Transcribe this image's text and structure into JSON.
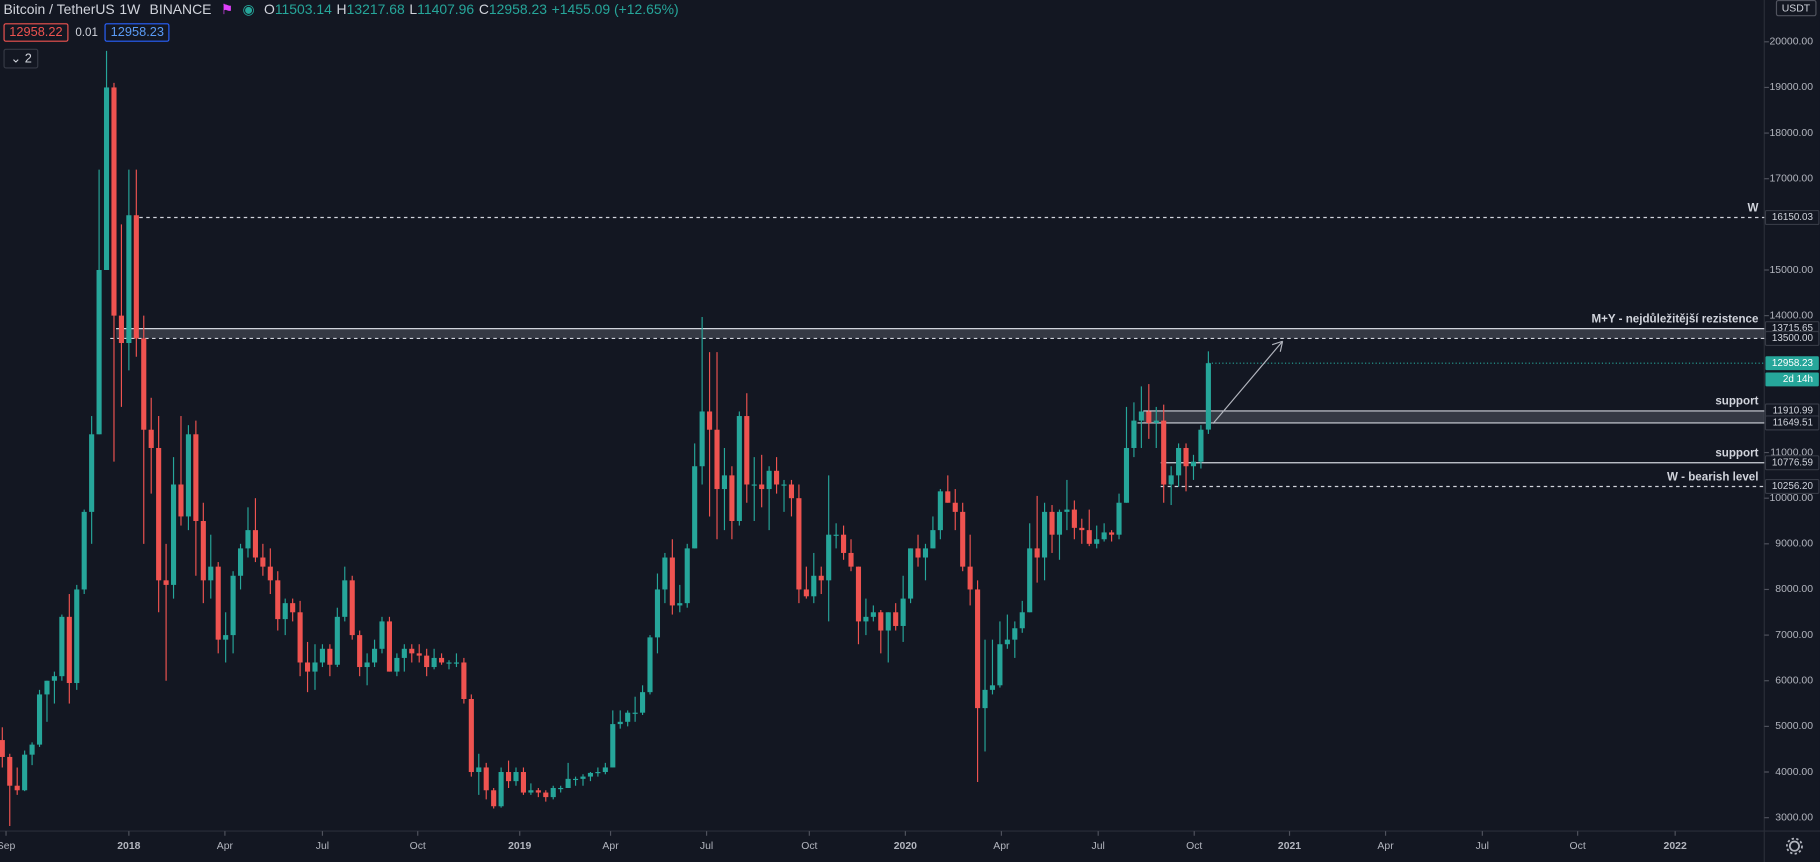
{
  "header": {
    "symbol": "Bitcoin / TetherUS",
    "interval": "1W",
    "exchange": "BINANCE",
    "open_label": "O",
    "high_label": "H",
    "low_label": "L",
    "close_label": "C",
    "change": "+1455.09 (+12.65%)",
    "bid": "12958.22",
    "spread": "0.01",
    "indicators": "2",
    "currency": "USDT",
    "countdown": "2d 14h"
  },
  "chart_data": {
    "type": "candlestick",
    "up_color": "#26a69a",
    "down_color": "#ef5350",
    "grid": false,
    "candles": [
      [
        4700,
        4980,
        4100,
        4330
      ],
      [
        4330,
        4400,
        2817,
        3700
      ],
      [
        3700,
        4100,
        3500,
        3600
      ],
      [
        3600,
        4470,
        3580,
        4380
      ],
      [
        4380,
        4650,
        4150,
        4600
      ],
      [
        4600,
        5800,
        4550,
        5700
      ],
      [
        5700,
        6000,
        5100,
        6000
      ],
      [
        6000,
        6200,
        5500,
        6100
      ],
      [
        6100,
        7450,
        6000,
        7400
      ],
      [
        7400,
        7900,
        5500,
        5950
      ],
      [
        5950,
        8100,
        5800,
        8000
      ],
      [
        8000,
        9750,
        7900,
        9700
      ],
      [
        9700,
        11800,
        9000,
        11400
      ],
      [
        11400,
        17200,
        11400,
        15000
      ],
      [
        15000,
        19800,
        15000,
        19000
      ],
      [
        19000,
        19100,
        10800,
        14000
      ],
      [
        14000,
        16000,
        12000,
        13400
      ],
      [
        13400,
        17200,
        12800,
        16200
      ],
      [
        16200,
        17200,
        13100,
        13500
      ],
      [
        13500,
        14000,
        9000,
        11500
      ],
      [
        11500,
        12200,
        10100,
        11100
      ],
      [
        11100,
        11800,
        7500,
        8200
      ],
      [
        8200,
        9000,
        6000,
        8100
      ],
      [
        8100,
        10900,
        7800,
        10300
      ],
      [
        10300,
        11800,
        9400,
        9600
      ],
      [
        9600,
        11600,
        9300,
        11400
      ],
      [
        11400,
        11700,
        8300,
        9500
      ],
      [
        9500,
        9900,
        7700,
        8200
      ],
      [
        8200,
        9200,
        7800,
        8500
      ],
      [
        8500,
        8600,
        6600,
        6900
      ],
      [
        6900,
        7500,
        6400,
        7000
      ],
      [
        7000,
        8400,
        6600,
        8300
      ],
      [
        8300,
        9000,
        8000,
        8900
      ],
      [
        8900,
        9800,
        8700,
        9300
      ],
      [
        9300,
        10000,
        8600,
        8700
      ],
      [
        8700,
        9000,
        8300,
        8500
      ],
      [
        8500,
        8900,
        7900,
        8200
      ],
      [
        8200,
        8400,
        7100,
        7350
      ],
      [
        7350,
        7800,
        7000,
        7700
      ],
      [
        7700,
        7800,
        7300,
        7500
      ],
      [
        7500,
        7750,
        6100,
        6400
      ],
      [
        6400,
        6850,
        5750,
        6200
      ],
      [
        6200,
        6800,
        5800,
        6400
      ],
      [
        6400,
        6800,
        6300,
        6700
      ],
      [
        6700,
        6800,
        6100,
        6350
      ],
      [
        6350,
        7600,
        6300,
        7400
      ],
      [
        7400,
        8500,
        7300,
        8200
      ],
      [
        8200,
        8300,
        6900,
        7000
      ],
      [
        7000,
        7100,
        6100,
        6300
      ],
      [
        6300,
        6600,
        5900,
        6400
      ],
      [
        6400,
        6900,
        6300,
        6700
      ],
      [
        6700,
        7400,
        6600,
        7300
      ],
      [
        7300,
        7400,
        6200,
        6200
      ],
      [
        6200,
        6600,
        6100,
        6500
      ],
      [
        6500,
        6800,
        6200,
        6700
      ],
      [
        6700,
        6800,
        6400,
        6600
      ],
      [
        6600,
        6800,
        6400,
        6550
      ],
      [
        6550,
        6700,
        6100,
        6300
      ],
      [
        6300,
        6700,
        6250,
        6500
      ],
      [
        6500,
        6600,
        6350,
        6400
      ],
      [
        6400,
        6450,
        6250,
        6400
      ],
      [
        6400,
        6600,
        6300,
        6400
      ],
      [
        6400,
        6500,
        5500,
        5600
      ],
      [
        5600,
        5700,
        3900,
        4000
      ],
      [
        4000,
        4400,
        3500,
        4100
      ],
      [
        4100,
        4200,
        3400,
        3600
      ],
      [
        3600,
        3650,
        3200,
        3250
      ],
      [
        3250,
        4100,
        3220,
        4000
      ],
      [
        4000,
        4250,
        3650,
        3800
      ],
      [
        3800,
        4100,
        3700,
        4000
      ],
      [
        4000,
        4100,
        3500,
        3550
      ],
      [
        3550,
        3750,
        3500,
        3600
      ],
      [
        3600,
        3650,
        3450,
        3550
      ],
      [
        3550,
        3600,
        3350,
        3450
      ],
      [
        3450,
        3700,
        3400,
        3650
      ],
      [
        3650,
        3700,
        3550,
        3650
      ],
      [
        3650,
        4200,
        3650,
        3850
      ],
      [
        3850,
        3900,
        3700,
        3850
      ],
      [
        3850,
        3950,
        3700,
        3900
      ],
      [
        3900,
        4000,
        3800,
        3980
      ],
      [
        3980,
        4100,
        3900,
        4000
      ],
      [
        4000,
        4200,
        3950,
        4100
      ],
      [
        4100,
        5350,
        4100,
        5050
      ],
      [
        5050,
        5350,
        4950,
        5100
      ],
      [
        5100,
        5350,
        5000,
        5300
      ],
      [
        5300,
        5650,
        5100,
        5300
      ],
      [
        5300,
        5900,
        5250,
        5750
      ],
      [
        5750,
        7000,
        5700,
        6950
      ],
      [
        6950,
        8350,
        6600,
        8000
      ],
      [
        8000,
        8800,
        7700,
        8700
      ],
      [
        8700,
        9100,
        7450,
        7650
      ],
      [
        7650,
        8100,
        7500,
        7700
      ],
      [
        7700,
        9000,
        7600,
        8900
      ],
      [
        8900,
        11200,
        8900,
        10700
      ],
      [
        10700,
        13970,
        10300,
        11900
      ],
      [
        11900,
        13200,
        9600,
        11500
      ],
      [
        11500,
        13200,
        9100,
        10200
      ],
      [
        10200,
        11100,
        9300,
        10500
      ],
      [
        10500,
        10700,
        9100,
        9500
      ],
      [
        9500,
        11900,
        9400,
        11800
      ],
      [
        11800,
        12300,
        9900,
        10300
      ],
      [
        10300,
        10900,
        9500,
        10300
      ],
      [
        10300,
        10950,
        9800,
        10200
      ],
      [
        10200,
        10700,
        9300,
        10600
      ],
      [
        10600,
        10900,
        10100,
        10300
      ],
      [
        10300,
        10400,
        9700,
        10300
      ],
      [
        10300,
        10400,
        9600,
        10000
      ],
      [
        10000,
        10300,
        7700,
        8000
      ],
      [
        8000,
        8500,
        7800,
        7850
      ],
      [
        7850,
        8800,
        7700,
        8300
      ],
      [
        8300,
        8500,
        7900,
        8200
      ],
      [
        8200,
        10500,
        7300,
        9200
      ],
      [
        9200,
        9450,
        8900,
        9200
      ],
      [
        9200,
        9400,
        8650,
        8800
      ],
      [
        8800,
        9100,
        8400,
        8500
      ],
      [
        8500,
        8500,
        6800,
        7300
      ],
      [
        7300,
        7800,
        7000,
        7400
      ],
      [
        7400,
        7650,
        7300,
        7500
      ],
      [
        7500,
        7550,
        6600,
        7100
      ],
      [
        7100,
        7500,
        6400,
        7500
      ],
      [
        7500,
        7700,
        7100,
        7200
      ],
      [
        7200,
        8300,
        6850,
        7800
      ],
      [
        7800,
        8900,
        7700,
        8900
      ],
      [
        8900,
        9200,
        8500,
        8700
      ],
      [
        8700,
        9000,
        8200,
        8900
      ],
      [
        8900,
        9600,
        8900,
        9300
      ],
      [
        9300,
        10200,
        9100,
        10150
      ],
      [
        10150,
        10500,
        9900,
        9900
      ],
      [
        9900,
        10200,
        9300,
        9700
      ],
      [
        9700,
        9900,
        8400,
        8500
      ],
      [
        8500,
        9200,
        7650,
        8000
      ],
      [
        8000,
        8200,
        3780,
        5400
      ],
      [
        5400,
        6900,
        4450,
        5800
      ],
      [
        5800,
        6900,
        5700,
        5900
      ],
      [
        5900,
        7300,
        5850,
        6800
      ],
      [
        6800,
        7450,
        6700,
        6900
      ],
      [
        6900,
        7300,
        6500,
        7150
      ],
      [
        7150,
        7750,
        7050,
        7500
      ],
      [
        7500,
        9450,
        7500,
        8900
      ],
      [
        8900,
        10050,
        8150,
        8700
      ],
      [
        8700,
        9900,
        8200,
        9700
      ],
      [
        9700,
        9850,
        8800,
        9200
      ],
      [
        9200,
        9750,
        8650,
        9700
      ],
      [
        9700,
        10400,
        9300,
        9750
      ],
      [
        9750,
        9950,
        9100,
        9350
      ],
      [
        9350,
        9550,
        9000,
        9300
      ],
      [
        9300,
        9750,
        8950,
        9000
      ],
      [
        9000,
        9400,
        8900,
        9100
      ],
      [
        9100,
        9450,
        9050,
        9250
      ],
      [
        9250,
        9300,
        9050,
        9200
      ],
      [
        9200,
        10100,
        9100,
        9900
      ],
      [
        9900,
        12000,
        9900,
        11100
      ],
      [
        11100,
        12100,
        10900,
        11700
      ],
      [
        11700,
        12450,
        11100,
        11900
      ],
      [
        11900,
        12500,
        11300,
        11650
      ],
      [
        11650,
        12000,
        11100,
        11700
      ],
      [
        11700,
        12050,
        9900,
        10300
      ],
      [
        10300,
        10700,
        9850,
        10500
      ],
      [
        10500,
        11200,
        10250,
        11100
      ],
      [
        11100,
        11200,
        10150,
        10700
      ],
      [
        10700,
        10950,
        10400,
        10800
      ],
      [
        10800,
        11600,
        10650,
        11500
      ],
      [
        11503.14,
        13217.68,
        11407.96,
        12958.23
      ]
    ],
    "ylim": [
      2706,
      20916
    ],
    "yticks": [
      {
        "value": 20000,
        "label": "20000.00"
      },
      {
        "value": 19000,
        "label": "19000.00"
      },
      {
        "value": 18000,
        "label": "18000.00"
      },
      {
        "value": 17000,
        "label": "17000.00"
      },
      {
        "value": 15000,
        "label": "15000.00"
      },
      {
        "value": 14000,
        "label": "14000.00"
      },
      {
        "value": 11000,
        "label": "11000.00"
      },
      {
        "value": 10000,
        "label": "10000.00"
      },
      {
        "value": 9000,
        "label": "9000.00"
      },
      {
        "value": 8000,
        "label": "8000.00"
      },
      {
        "value": 7000,
        "label": "7000.00"
      },
      {
        "value": 6000,
        "label": "6000.00"
      },
      {
        "value": 5000,
        "label": "5000.00"
      },
      {
        "value": 4000,
        "label": "4000.00"
      },
      {
        "value": 3000,
        "label": "3000.00"
      }
    ],
    "xlim": [
      -0.31,
      236.67
    ],
    "xticks": [
      {
        "value": 0.5,
        "label": "Sep"
      },
      {
        "value": 17,
        "label": "2018"
      },
      {
        "value": 29.9,
        "label": "Apr"
      },
      {
        "value": 43,
        "label": "Jul"
      },
      {
        "value": 55.8,
        "label": "Oct"
      },
      {
        "value": 69.5,
        "label": "2019"
      },
      {
        "value": 81.7,
        "label": "Apr"
      },
      {
        "value": 94.6,
        "label": "Jul"
      },
      {
        "value": 108.4,
        "label": "Oct"
      },
      {
        "value": 121.3,
        "label": "2020"
      },
      {
        "value": 134.2,
        "label": "Apr"
      },
      {
        "value": 147.2,
        "label": "Jul"
      },
      {
        "value": 160.1,
        "label": "Oct"
      },
      {
        "value": 172.9,
        "label": "2021"
      },
      {
        "value": 185.8,
        "label": "Apr"
      },
      {
        "value": 198.8,
        "label": "Jul"
      },
      {
        "value": 211.6,
        "label": "Oct"
      },
      {
        "value": 224.7,
        "label": "2022"
      }
    ],
    "zones": [
      {
        "low": 13500,
        "low_label": "13500.00",
        "high": 13715.65,
        "name": "M+Y - nejdůležitější rezistence"
      },
      {
        "low": 11649.51,
        "high": 11910.99,
        "name": "support"
      }
    ],
    "levels": [
      {
        "value": 16150.03,
        "name": "W",
        "style": "dashed"
      },
      {
        "value": 10776.59,
        "name": "support",
        "style": "solid"
      },
      {
        "value": 10256.2,
        "value_label": "10256.20",
        "name": "W - bearish level",
        "style": "dashed"
      }
    ]
  }
}
